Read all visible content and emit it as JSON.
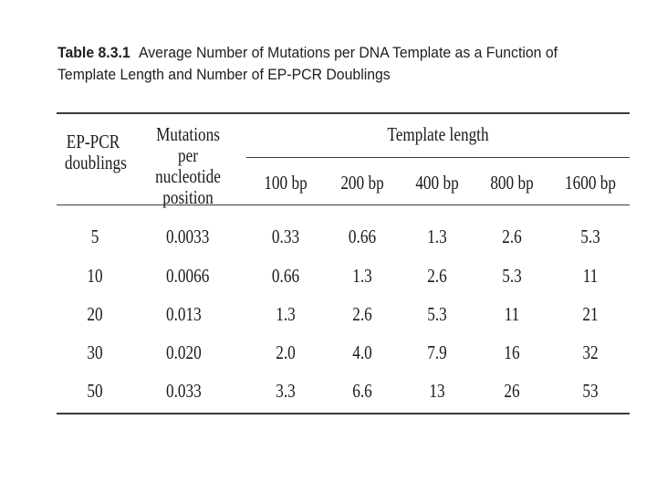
{
  "caption": {
    "label": "Table 8.3.1",
    "line1": "Average Number of Mutations per DNA Template as a Function of",
    "line2": "Template Length and Number of EP-PCR Doublings"
  },
  "headers": {
    "doublings": [
      "EP-PCR",
      "doublings"
    ],
    "mutations": [
      "Mutations per",
      "nucleotide",
      "position"
    ],
    "template_length": "Template length",
    "lengths": [
      "100 bp",
      "200 bp",
      "400 bp",
      "800 bp",
      "1600 bp"
    ]
  },
  "rows": [
    {
      "doublings": "5",
      "mutations": "0.0033",
      "values": [
        "0.33",
        "0.66",
        "1.3",
        "2.6",
        "5.3"
      ]
    },
    {
      "doublings": "10",
      "mutations": "0.0066",
      "values": [
        "0.66",
        "1.3",
        "2.6",
        "5.3",
        "11"
      ]
    },
    {
      "doublings": "20",
      "mutations": "0.013",
      "values": [
        "1.3",
        "2.6",
        "5.3",
        "11",
        "21"
      ]
    },
    {
      "doublings": "30",
      "mutations": "0.020",
      "values": [
        "2.0",
        "4.0",
        "7.9",
        "16",
        "32"
      ]
    },
    {
      "doublings": "50",
      "mutations": "0.033",
      "values": [
        "3.3",
        "6.6",
        "13",
        "26",
        "53"
      ]
    }
  ]
}
